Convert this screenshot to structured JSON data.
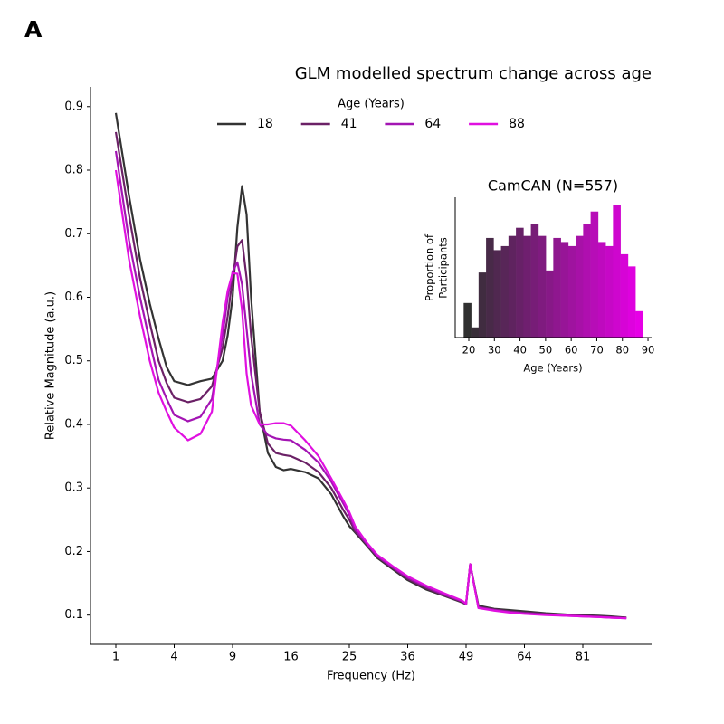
{
  "panel_label": "A",
  "chart_data": [
    {
      "type": "line",
      "title": "GLM modelled spectrum change across age",
      "xlabel": "Frequency (Hz)",
      "ylabel": "Relative Magnitude (a.u.)",
      "legend_title": "Age (Years)",
      "legend": "top-center",
      "xscale": "sqrt",
      "xlim": [
        0.32,
        103.6
      ],
      "xticks": [
        1,
        4,
        9,
        16,
        25,
        36,
        49,
        64,
        81
      ],
      "ylim": [
        0.054,
        0.931
      ],
      "yticks": [
        0.1,
        0.2,
        0.3,
        0.4,
        0.5,
        0.6,
        0.7,
        0.8,
        0.9
      ],
      "x": [
        1,
        1.5,
        2,
        2.5,
        3,
        3.5,
        4,
        5,
        6,
        7,
        8,
        8.5,
        9,
        9.5,
        10,
        10.5,
        11,
        12,
        13,
        14,
        15,
        16,
        18,
        20,
        22,
        24,
        25,
        26,
        28,
        30,
        33,
        36,
        40,
        44,
        48,
        49,
        50,
        52,
        56,
        60,
        64,
        70,
        76,
        81,
        86,
        90,
        95
      ],
      "series": [
        {
          "name": "18",
          "color": "#333333",
          "values": [
            0.89,
            0.76,
            0.66,
            0.59,
            0.535,
            0.49,
            0.468,
            0.462,
            0.468,
            0.472,
            0.5,
            0.54,
            0.6,
            0.71,
            0.775,
            0.73,
            0.6,
            0.42,
            0.355,
            0.333,
            0.328,
            0.33,
            0.325,
            0.315,
            0.29,
            0.255,
            0.24,
            0.23,
            0.21,
            0.19,
            0.172,
            0.155,
            0.14,
            0.13,
            0.12,
            0.117,
            0.18,
            0.115,
            0.11,
            0.108,
            0.106,
            0.103,
            0.101,
            0.1,
            0.099,
            0.098,
            0.096
          ]
        },
        {
          "name": "41",
          "color": "#6b2166",
          "values": [
            0.86,
            0.73,
            0.63,
            0.56,
            0.5,
            0.465,
            0.442,
            0.435,
            0.44,
            0.46,
            0.52,
            0.57,
            0.63,
            0.68,
            0.69,
            0.63,
            0.54,
            0.42,
            0.37,
            0.355,
            0.352,
            0.35,
            0.34,
            0.325,
            0.3,
            0.265,
            0.25,
            0.232,
            0.212,
            0.192,
            0.174,
            0.157,
            0.142,
            0.131,
            0.121,
            0.117,
            0.18,
            0.113,
            0.109,
            0.106,
            0.104,
            0.102,
            0.1,
            0.099,
            0.098,
            0.097,
            0.096
          ]
        },
        {
          "name": "64",
          "color": "#a315b3",
          "values": [
            0.83,
            0.69,
            0.6,
            0.53,
            0.47,
            0.44,
            0.415,
            0.405,
            0.412,
            0.44,
            0.54,
            0.6,
            0.64,
            0.655,
            0.62,
            0.55,
            0.48,
            0.4,
            0.383,
            0.378,
            0.376,
            0.375,
            0.36,
            0.34,
            0.31,
            0.275,
            0.258,
            0.235,
            0.213,
            0.193,
            0.175,
            0.159,
            0.144,
            0.132,
            0.122,
            0.118,
            0.18,
            0.112,
            0.108,
            0.105,
            0.103,
            0.101,
            0.099,
            0.098,
            0.097,
            0.096,
            0.095
          ]
        },
        {
          "name": "88",
          "color": "#e010e0",
          "values": [
            0.8,
            0.66,
            0.57,
            0.5,
            0.45,
            0.42,
            0.395,
            0.375,
            0.385,
            0.42,
            0.56,
            0.61,
            0.638,
            0.637,
            0.58,
            0.48,
            0.43,
            0.4,
            0.4,
            0.402,
            0.402,
            0.398,
            0.375,
            0.35,
            0.315,
            0.28,
            0.262,
            0.24,
            0.215,
            0.195,
            0.177,
            0.161,
            0.146,
            0.134,
            0.123,
            0.118,
            0.18,
            0.111,
            0.107,
            0.104,
            0.102,
            0.1,
            0.099,
            0.098,
            0.097,
            0.096,
            0.095
          ]
        }
      ]
    },
    {
      "type": "histogram",
      "title": "CamCAN (N=557)",
      "xlabel": "Age (Years)",
      "ylabel": [
        "Proportion of",
        "Participants"
      ],
      "colors": [
        "#303030",
        "#e600e6"
      ],
      "xlim": [
        14.7,
        91.4
      ],
      "xticks": [
        20,
        30,
        40,
        50,
        60,
        70,
        80,
        90
      ],
      "ylim": [
        0,
        0.069
      ],
      "bins": [
        18,
        20.92,
        23.83,
        26.75,
        29.67,
        32.58,
        35.5,
        38.42,
        41.33,
        44.25,
        47.17,
        50.08,
        53,
        55.92,
        58.83,
        61.75,
        64.67,
        67.58,
        70.5,
        73.42,
        76.33,
        79.25,
        82.17,
        85.08,
        88
      ],
      "values": [
        0.017,
        0.005,
        0.032,
        0.049,
        0.043,
        0.045,
        0.05,
        0.054,
        0.05,
        0.056,
        0.05,
        0.033,
        0.049,
        0.047,
        0.045,
        0.05,
        0.056,
        0.062,
        0.047,
        0.045,
        0.065,
        0.041,
        0.035,
        0.013
      ]
    }
  ]
}
